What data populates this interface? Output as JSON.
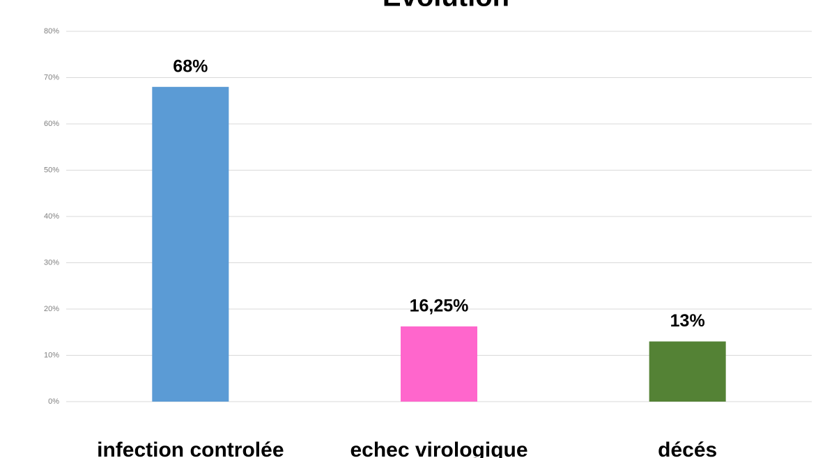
{
  "chart_data": {
    "type": "bar",
    "title": "Evolution",
    "categories": [
      "infection controlée",
      "echec virologique",
      "décés"
    ],
    "values": [
      68,
      16.25,
      13
    ],
    "value_labels": [
      "68%",
      "16,25%",
      "13%"
    ],
    "colors": [
      "#5b9bd5",
      "#ff66cc",
      "#548235"
    ],
    "ylim": [
      0,
      80
    ],
    "yticks": [
      {
        "value": 0,
        "label": "0%"
      },
      {
        "value": 10,
        "label": "10%"
      },
      {
        "value": 20,
        "label": "20%"
      },
      {
        "value": 30,
        "label": "30%"
      },
      {
        "value": 40,
        "label": "40%"
      },
      {
        "value": 50,
        "label": "50%"
      },
      {
        "value": 60,
        "label": "60%"
      },
      {
        "value": 70,
        "label": "70%"
      },
      {
        "value": 80,
        "label": "80%"
      }
    ],
    "grid": true
  }
}
